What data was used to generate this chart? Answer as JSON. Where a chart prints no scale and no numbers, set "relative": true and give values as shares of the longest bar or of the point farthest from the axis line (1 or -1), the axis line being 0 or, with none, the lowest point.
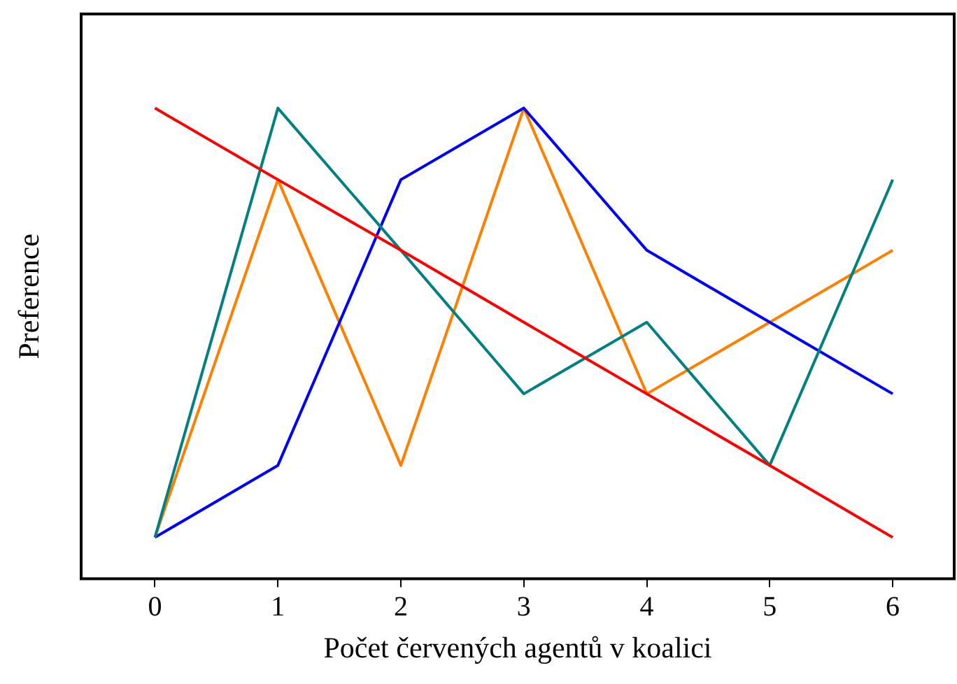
{
  "chart_data": {
    "type": "line",
    "relative": true,
    "xlabel": "Počet červených agentů v koalici",
    "ylabel": "Preference",
    "x": [
      0,
      1,
      2,
      3,
      4,
      5,
      6
    ],
    "xlim": [
      -0.6,
      6.5
    ],
    "xticks": [
      0,
      1,
      2,
      3,
      4,
      5,
      6
    ],
    "grid": false,
    "legend": false,
    "line_style": "solid",
    "series": [
      {
        "color": "#ff0000",
        "values": [
          1,
          0.848,
          0.698,
          0.545,
          0.393,
          0.241,
          0.088
        ]
      },
      {
        "color": "#008080",
        "values": [
          0.088,
          1,
          0.698,
          0.393,
          0.545,
          0.241,
          0.848
        ]
      },
      {
        "color": "#0000ff",
        "values": [
          0.088,
          0.241,
          0.848,
          1,
          0.698,
          0.545,
          0.393
        ]
      },
      {
        "color": "#ff8000",
        "values": [
          0.088,
          0.848,
          0.241,
          1,
          0.393,
          0.545,
          0.698
        ]
      }
    ]
  }
}
